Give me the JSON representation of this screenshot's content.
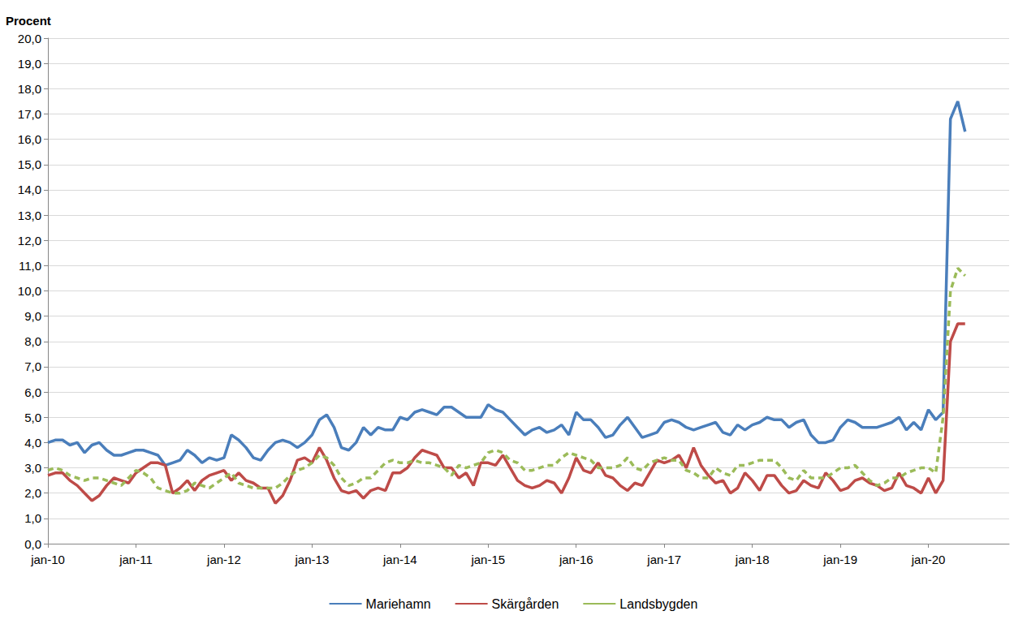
{
  "chart_data": {
    "type": "line",
    "y_label": "Procent",
    "categories": [
      "jan-10",
      null,
      null,
      null,
      null,
      null,
      null,
      null,
      null,
      null,
      null,
      null,
      "jan-11",
      null,
      null,
      null,
      null,
      null,
      null,
      null,
      null,
      null,
      null,
      null,
      "jan-12",
      null,
      null,
      null,
      null,
      null,
      null,
      null,
      null,
      null,
      null,
      null,
      "jan-13",
      null,
      null,
      null,
      null,
      null,
      null,
      null,
      null,
      null,
      null,
      null,
      "jan-14",
      null,
      null,
      null,
      null,
      null,
      null,
      null,
      null,
      null,
      null,
      null,
      "jan-15",
      null,
      null,
      null,
      null,
      null,
      null,
      null,
      null,
      null,
      null,
      null,
      "jan-16",
      null,
      null,
      null,
      null,
      null,
      null,
      null,
      null,
      null,
      null,
      null,
      "jan-17",
      null,
      null,
      null,
      null,
      null,
      null,
      null,
      null,
      null,
      null,
      null,
      "jan-18",
      null,
      null,
      null,
      null,
      null,
      null,
      null,
      null,
      null,
      null,
      null,
      "jan-19",
      null,
      null,
      null,
      null,
      null,
      null,
      null,
      null,
      null,
      null,
      null,
      "jan-20",
      null,
      null,
      null,
      null,
      null,
      null,
      null,
      null,
      null,
      null,
      null
    ],
    "series": [
      {
        "name": "Mariehamn",
        "color": "#4a7ebb",
        "line_style": "solid",
        "values": [
          4.0,
          4.1,
          4.1,
          3.9,
          4.0,
          3.6,
          3.9,
          4.0,
          3.7,
          3.5,
          3.5,
          3.6,
          3.7,
          3.7,
          3.6,
          3.5,
          3.1,
          3.2,
          3.3,
          3.7,
          3.5,
          3.2,
          3.4,
          3.3,
          3.4,
          4.3,
          4.1,
          3.8,
          3.4,
          3.3,
          3.7,
          4.0,
          4.1,
          4.0,
          3.8,
          4.0,
          4.3,
          4.9,
          5.1,
          4.6,
          3.8,
          3.7,
          4.0,
          4.6,
          4.3,
          4.6,
          4.5,
          4.5,
          5.0,
          4.9,
          5.2,
          5.3,
          5.2,
          5.1,
          5.4,
          5.4,
          5.2,
          5.0,
          5.0,
          5.0,
          5.5,
          5.3,
          5.2,
          4.9,
          4.6,
          4.3,
          4.5,
          4.6,
          4.4,
          4.5,
          4.7,
          4.3,
          5.2,
          4.9,
          4.9,
          4.6,
          4.2,
          4.3,
          4.7,
          5.0,
          4.6,
          4.2,
          4.3,
          4.4,
          4.8,
          4.9,
          4.8,
          4.6,
          4.5,
          4.6,
          4.7,
          4.8,
          4.4,
          4.3,
          4.7,
          4.5,
          4.7,
          4.8,
          5.0,
          4.9,
          4.9,
          4.6,
          4.8,
          4.9,
          4.3,
          4.0,
          4.0,
          4.1,
          4.6,
          4.9,
          4.8,
          4.6,
          4.6,
          4.6,
          4.7,
          4.8,
          5.0,
          4.5,
          4.8,
          4.5,
          5.3,
          4.9,
          5.2,
          16.8,
          17.5,
          16.3,
          null,
          null,
          null,
          null,
          null,
          null
        ]
      },
      {
        "name": "Skärgården",
        "color": "#be4b48",
        "line_style": "solid",
        "values": [
          2.7,
          2.8,
          2.8,
          2.5,
          2.3,
          2.0,
          1.7,
          1.9,
          2.3,
          2.6,
          2.5,
          2.4,
          2.8,
          3.0,
          3.2,
          3.2,
          3.1,
          2.0,
          2.2,
          2.5,
          2.1,
          2.5,
          2.7,
          2.8,
          2.9,
          2.5,
          2.8,
          2.5,
          2.4,
          2.2,
          2.2,
          1.6,
          1.9,
          2.5,
          3.3,
          3.4,
          3.2,
          3.8,
          3.3,
          2.6,
          2.1,
          2.0,
          2.1,
          1.8,
          2.1,
          2.2,
          2.1,
          2.8,
          2.8,
          3.0,
          3.4,
          3.7,
          3.6,
          3.5,
          3.0,
          3.0,
          2.6,
          2.8,
          2.3,
          3.2,
          3.2,
          3.1,
          3.5,
          3.0,
          2.5,
          2.3,
          2.2,
          2.3,
          2.5,
          2.4,
          2.0,
          2.6,
          3.4,
          2.9,
          2.8,
          3.2,
          2.7,
          2.6,
          2.3,
          2.1,
          2.4,
          2.3,
          2.8,
          3.3,
          3.2,
          3.3,
          3.5,
          3.0,
          3.8,
          3.1,
          2.7,
          2.4,
          2.5,
          2.0,
          2.2,
          2.8,
          2.5,
          2.1,
          2.7,
          2.7,
          2.3,
          2.0,
          2.1,
          2.5,
          2.3,
          2.2,
          2.8,
          2.5,
          2.1,
          2.2,
          2.5,
          2.6,
          2.4,
          2.3,
          2.1,
          2.2,
          2.8,
          2.3,
          2.2,
          2.0,
          2.6,
          2.0,
          2.5,
          8.0,
          8.7,
          8.7,
          null,
          null,
          null,
          null,
          null,
          null
        ]
      },
      {
        "name": "Landsbygden",
        "color": "#9bbb59",
        "line_style": "dashed",
        "values": [
          2.9,
          3.0,
          2.9,
          2.7,
          2.6,
          2.5,
          2.6,
          2.6,
          2.5,
          2.4,
          2.3,
          2.6,
          2.9,
          2.8,
          2.6,
          2.2,
          2.1,
          2.0,
          2.0,
          2.1,
          2.4,
          2.3,
          2.2,
          2.4,
          2.6,
          2.8,
          2.4,
          2.3,
          2.2,
          2.2,
          2.2,
          2.2,
          2.4,
          2.7,
          2.9,
          3.0,
          3.2,
          3.5,
          3.4,
          3.1,
          2.6,
          2.3,
          2.4,
          2.6,
          2.6,
          2.9,
          3.2,
          3.3,
          3.2,
          3.2,
          3.3,
          3.2,
          3.2,
          3.1,
          3.0,
          2.7,
          3.1,
          3.0,
          3.1,
          3.2,
          3.6,
          3.7,
          3.6,
          3.3,
          3.2,
          2.9,
          2.9,
          3.0,
          3.1,
          3.1,
          3.4,
          3.6,
          3.5,
          3.4,
          3.3,
          3.0,
          3.0,
          3.0,
          3.1,
          3.4,
          3.0,
          2.9,
          3.2,
          3.3,
          3.4,
          3.3,
          3.3,
          2.9,
          2.8,
          2.6,
          2.6,
          3.0,
          2.8,
          2.7,
          3.1,
          3.1,
          3.2,
          3.3,
          3.3,
          3.3,
          3.0,
          2.6,
          2.5,
          2.9,
          2.6,
          2.6,
          2.6,
          2.8,
          3.0,
          3.0,
          3.1,
          2.8,
          2.5,
          2.3,
          2.4,
          2.6,
          2.6,
          2.8,
          2.9,
          3.0,
          3.0,
          2.8,
          5.0,
          10.0,
          10.9,
          10.6,
          null,
          null,
          null,
          null,
          null,
          null
        ]
      }
    ],
    "ylim": [
      0,
      20
    ],
    "yticks": [
      {
        "value": 0,
        "label": "0,0"
      },
      {
        "value": 1,
        "label": "1,0"
      },
      {
        "value": 2,
        "label": "2,0"
      },
      {
        "value": 3,
        "label": "3,0"
      },
      {
        "value": 4,
        "label": "4,0"
      },
      {
        "value": 5,
        "label": "5,0"
      },
      {
        "value": 6,
        "label": "6,0"
      },
      {
        "value": 7,
        "label": "7,0"
      },
      {
        "value": 8,
        "label": "8,0"
      },
      {
        "value": 9,
        "label": "9,0"
      },
      {
        "value": 10,
        "label": "10,0"
      },
      {
        "value": 11,
        "label": "11,0"
      },
      {
        "value": 12,
        "label": "12,0"
      },
      {
        "value": 13,
        "label": "13,0"
      },
      {
        "value": 14,
        "label": "14,0"
      },
      {
        "value": 15,
        "label": "15,0"
      },
      {
        "value": 16,
        "label": "16,0"
      },
      {
        "value": 17,
        "label": "17,0"
      },
      {
        "value": 18,
        "label": "18,0"
      },
      {
        "value": 19,
        "label": "19,0"
      },
      {
        "value": 20,
        "label": "20,0"
      }
    ],
    "grid": true,
    "legend": "bottom"
  }
}
